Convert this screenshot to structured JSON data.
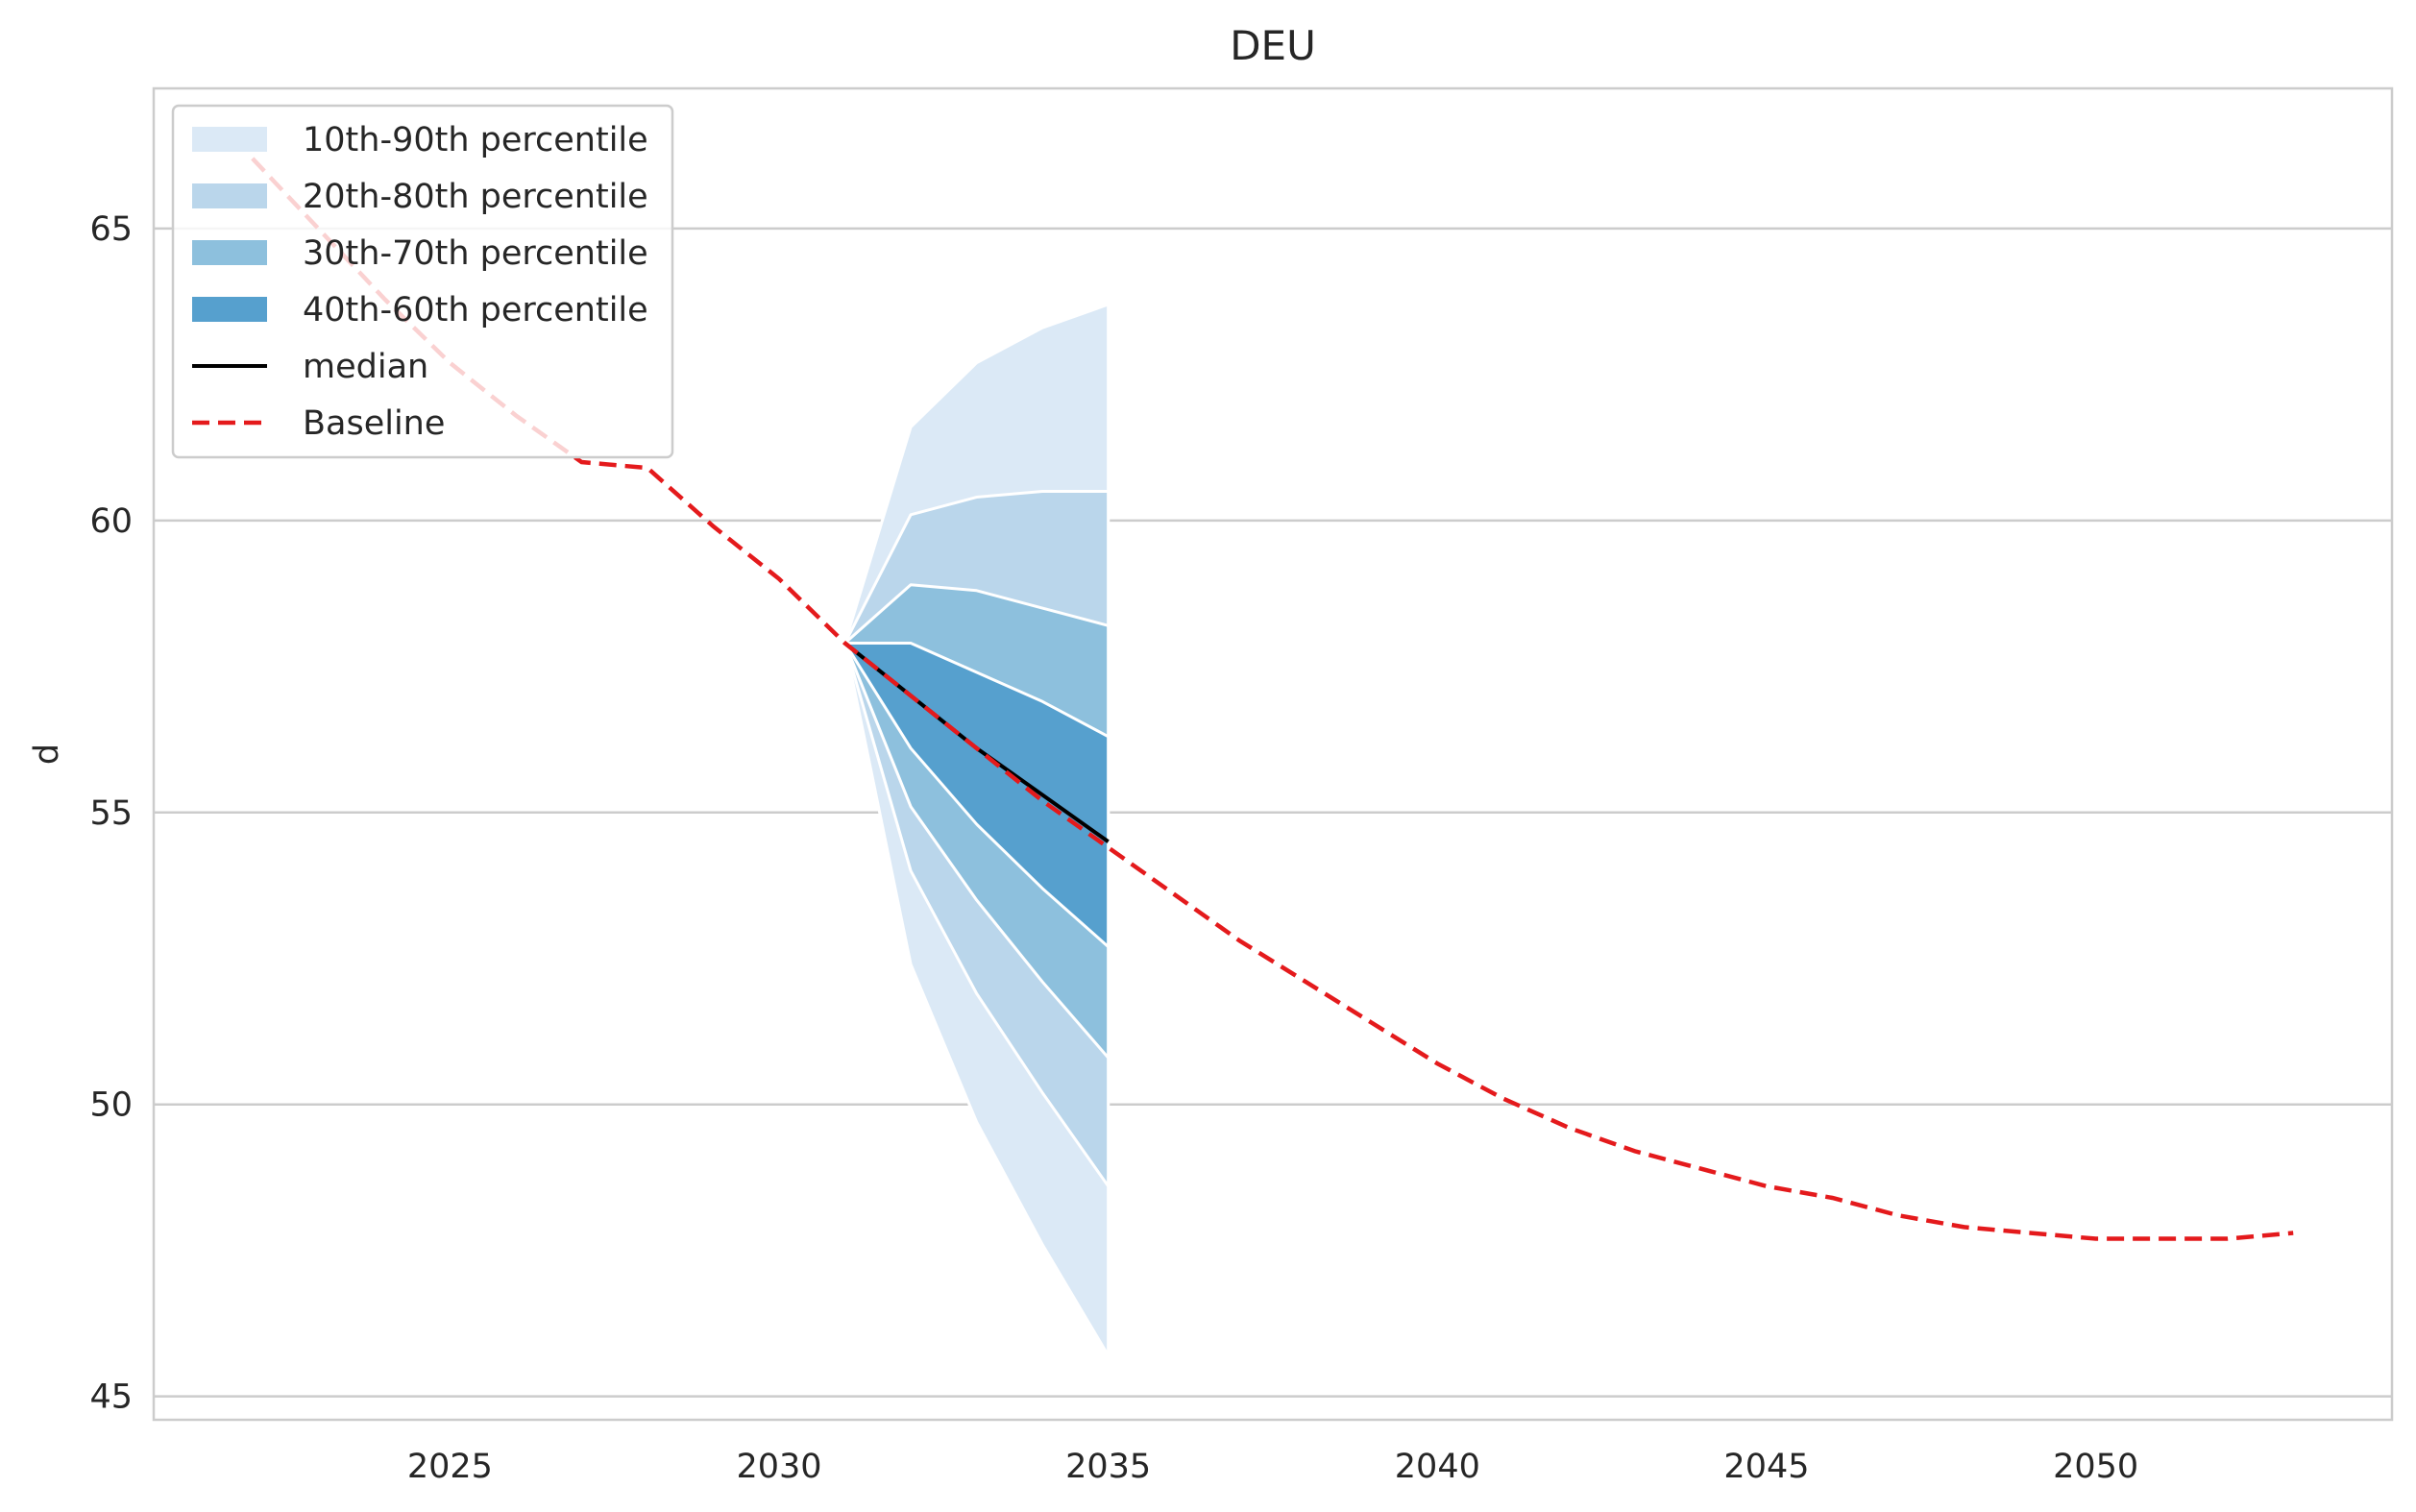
{
  "chart_data": {
    "type": "area",
    "title": "DEU",
    "xlabel": "",
    "ylabel": "d",
    "xlim": [
      2020.5,
      2054.5
    ],
    "ylim": [
      44.6,
      67.4
    ],
    "xticks": [
      2025,
      2030,
      2035,
      2040,
      2045,
      2050
    ],
    "yticks": [
      45,
      50,
      55,
      60,
      65
    ],
    "grid": "horizontal",
    "legend_position": "top-left",
    "colors": {
      "band_10_90": "#dbe9f6",
      "band_20_80": "#bad6eb",
      "band_30_70": "#8dc0dd",
      "band_40_60": "#56a0ce",
      "median": "#000000",
      "baseline": "#e41a1c"
    },
    "bands": [
      {
        "name": "10th-90th percentile",
        "x": [
          2031,
          2032,
          2033,
          2034,
          2035
        ],
        "lower": [
          57.9,
          52.4,
          49.7,
          47.6,
          45.7
        ],
        "upper": [
          57.9,
          61.6,
          62.7,
          63.3,
          63.7
        ]
      },
      {
        "name": "20th-80th percentile",
        "x": [
          2031,
          2032,
          2033,
          2034,
          2035
        ],
        "lower": [
          57.9,
          54.0,
          51.9,
          50.2,
          48.6
        ],
        "upper": [
          57.9,
          60.1,
          60.4,
          60.5,
          60.5
        ]
      },
      {
        "name": "30th-70th percentile",
        "x": [
          2031,
          2032,
          2033,
          2034,
          2035
        ],
        "lower": [
          57.9,
          55.1,
          53.5,
          52.1,
          50.8
        ],
        "upper": [
          57.9,
          58.9,
          58.8,
          58.5,
          58.2
        ]
      },
      {
        "name": "40th-60th percentile",
        "x": [
          2031,
          2032,
          2033,
          2034,
          2035
        ],
        "lower": [
          57.9,
          56.1,
          54.8,
          53.7,
          52.7
        ],
        "upper": [
          57.9,
          57.9,
          57.4,
          56.9,
          56.3
        ]
      }
    ],
    "median": {
      "name": "median",
      "x": [
        2031,
        2032,
        2033,
        2034,
        2035
      ],
      "values": [
        57.9,
        57.0,
        56.1,
        55.3,
        54.5
      ]
    },
    "baseline": {
      "name": "Baseline",
      "x": [
        2022,
        2023,
        2024,
        2025,
        2026,
        2027,
        2028,
        2029,
        2030,
        2031,
        2032,
        2033,
        2034,
        2035,
        2036,
        2037,
        2038,
        2039,
        2040,
        2041,
        2042,
        2043,
        2044,
        2045,
        2046,
        2047,
        2048,
        2049,
        2050,
        2051,
        2052,
        2053
      ],
      "values": [
        66.2,
        65.0,
        63.8,
        62.7,
        61.8,
        61.0,
        60.9,
        59.9,
        59.0,
        57.9,
        57.0,
        56.1,
        55.2,
        54.4,
        53.6,
        52.8,
        52.1,
        51.4,
        50.7,
        50.1,
        49.6,
        49.2,
        48.9,
        48.6,
        48.4,
        48.1,
        47.9,
        47.8,
        47.7,
        47.7,
        47.7,
        47.8
      ]
    },
    "legend": [
      "10th-90th percentile",
      "20th-80th percentile",
      "30th-70th percentile",
      "40th-60th percentile",
      "median",
      "Baseline"
    ]
  }
}
